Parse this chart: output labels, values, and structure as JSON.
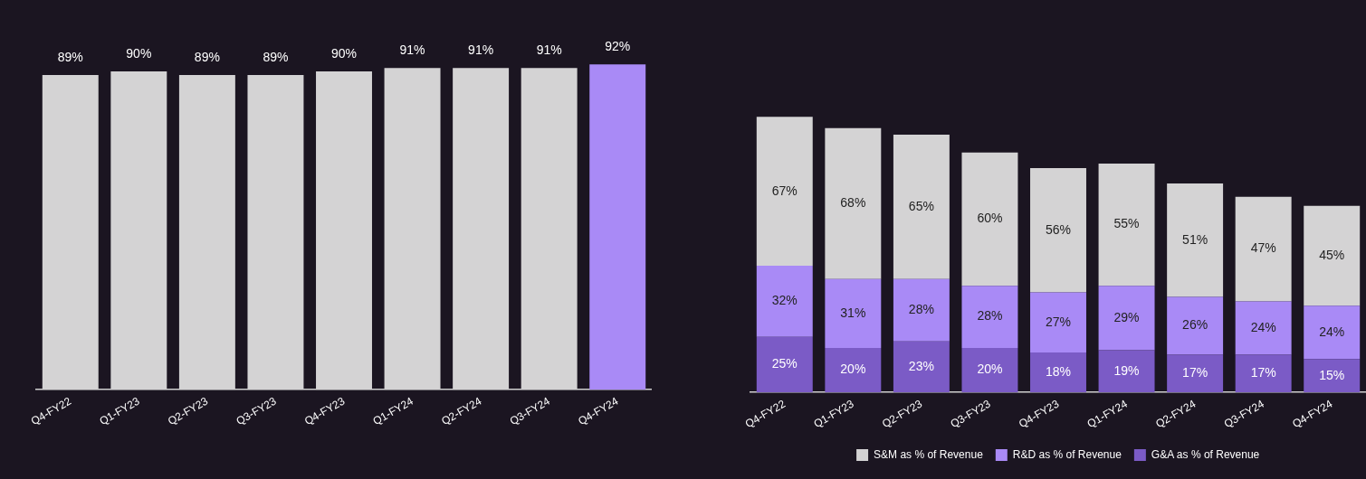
{
  "chart_data": [
    {
      "type": "bar",
      "categories": [
        "Q4-FY22",
        "Q1-FY23",
        "Q2-FY23",
        "Q3-FY23",
        "Q4-FY23",
        "Q1-FY24",
        "Q2-FY24",
        "Q3-FY24",
        "Q4-FY24"
      ],
      "values": [
        89,
        90,
        89,
        89,
        90,
        91,
        91,
        91,
        92
      ],
      "colors": [
        "#d4d3d4",
        "#d4d3d4",
        "#d4d3d4",
        "#d4d3d4",
        "#d4d3d4",
        "#d4d3d4",
        "#d4d3d4",
        "#d4d3d4",
        "#a98af6"
      ],
      "value_labels": [
        "89%",
        "90%",
        "89%",
        "89%",
        "90%",
        "91%",
        "91%",
        "91%",
        "92%"
      ],
      "tick_labels": "x",
      "legend": false
    },
    {
      "type": "bar",
      "stacked": true,
      "categories": [
        "Q4-FY22",
        "Q1-FY23",
        "Q2-FY23",
        "Q3-FY23",
        "Q4-FY23",
        "Q1-FY24",
        "Q2-FY24",
        "Q3-FY24",
        "Q4-FY24"
      ],
      "series": [
        {
          "name": "G&A as % of Revenue",
          "color": "#7b5bc6",
          "values": [
            25,
            20,
            23,
            20,
            18,
            19,
            17,
            17,
            15
          ],
          "value_labels": [
            "25%",
            "20%",
            "23%",
            "20%",
            "18%",
            "19%",
            "17%",
            "17%",
            "15%"
          ]
        },
        {
          "name": "R&D as % of Revenue",
          "color": "#a98af6",
          "values": [
            32,
            31,
            28,
            28,
            27,
            29,
            26,
            24,
            24
          ],
          "value_labels": [
            "32%",
            "31%",
            "28%",
            "28%",
            "27%",
            "29%",
            "26%",
            "24%",
            "24%"
          ]
        },
        {
          "name": "S&M as % of Revenue",
          "color": "#d4d3d4",
          "values": [
            67,
            68,
            65,
            60,
            56,
            55,
            51,
            47,
            45
          ],
          "value_labels": [
            "67%",
            "68%",
            "65%",
            "60%",
            "56%",
            "55%",
            "51%",
            "47%",
            "45%"
          ]
        }
      ],
      "tick_labels": "x",
      "legend": "bottom"
    }
  ]
}
